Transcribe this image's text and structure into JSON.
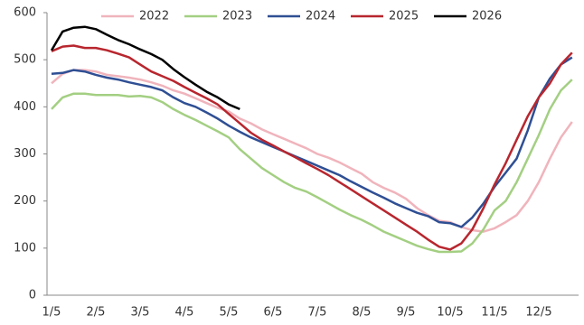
{
  "chart_data": {
    "type": "line",
    "categories": [
      "1/5",
      null,
      null,
      null,
      "2/5",
      null,
      null,
      null,
      "3/5",
      null,
      null,
      null,
      "4/5",
      null,
      null,
      null,
      "5/5",
      null,
      null,
      null,
      "6/5",
      null,
      null,
      null,
      "7/5",
      null,
      null,
      null,
      "8/5",
      null,
      null,
      null,
      "9/5",
      null,
      null,
      null,
      "10/5",
      null,
      null,
      null,
      "11/5",
      null,
      null,
      null,
      "12/5",
      null,
      null,
      null
    ],
    "series": [
      {
        "name": "2022",
        "color": "#f0b4bc",
        "values": [
          450,
          470,
          478,
          478,
          475,
          468,
          465,
          462,
          458,
          452,
          445,
          435,
          428,
          418,
          408,
          398,
          390,
          375,
          365,
          352,
          342,
          332,
          322,
          312,
          300,
          292,
          282,
          270,
          258,
          240,
          228,
          218,
          205,
          185,
          170,
          158,
          155,
          145,
          138,
          135,
          142,
          155,
          170,
          200,
          240,
          290,
          335,
          368
        ]
      },
      {
        "name": "2023",
        "color": "#a3cf82",
        "values": [
          395,
          420,
          428,
          428,
          425,
          425,
          425,
          422,
          423,
          420,
          410,
          395,
          383,
          372,
          360,
          348,
          335,
          310,
          290,
          270,
          255,
          240,
          228,
          220,
          208,
          195,
          182,
          170,
          160,
          148,
          135,
          125,
          115,
          105,
          98,
          92,
          92,
          93,
          110,
          140,
          180,
          200,
          240,
          290,
          340,
          395,
          435,
          458
        ]
      },
      {
        "name": "2024",
        "color": "#2f4f94",
        "values": [
          470,
          472,
          478,
          475,
          468,
          462,
          458,
          452,
          447,
          442,
          435,
          420,
          408,
          400,
          388,
          375,
          360,
          347,
          335,
          325,
          315,
          305,
          295,
          285,
          275,
          265,
          255,
          242,
          230,
          218,
          207,
          195,
          185,
          175,
          168,
          155,
          153,
          145,
          165,
          195,
          230,
          260,
          290,
          350,
          420,
          460,
          490,
          505
        ]
      },
      {
        "name": "2025",
        "color": "#b8262e",
        "values": [
          518,
          528,
          530,
          525,
          525,
          520,
          513,
          505,
          490,
          475,
          465,
          455,
          442,
          430,
          418,
          405,
          385,
          365,
          345,
          330,
          318,
          305,
          293,
          280,
          268,
          255,
          240,
          225,
          210,
          195,
          180,
          165,
          150,
          135,
          118,
          103,
          97,
          110,
          140,
          185,
          235,
          280,
          330,
          380,
          420,
          450,
          490,
          515
        ]
      },
      {
        "name": "2026",
        "color": "#000000",
        "values": [
          520,
          560,
          568,
          570,
          565,
          553,
          542,
          533,
          522,
          512,
          500,
          480,
          463,
          447,
          432,
          420,
          405,
          395,
          null,
          null,
          null,
          null,
          null,
          null,
          null,
          null,
          null,
          null,
          null,
          null,
          null,
          null,
          null,
          null,
          null,
          null,
          null,
          null,
          null,
          null,
          null,
          null,
          null,
          null,
          null,
          null,
          null,
          null
        ]
      }
    ],
    "ylim": [
      0,
      600
    ],
    "yticks": [
      0,
      100,
      200,
      300,
      400,
      500,
      600
    ],
    "grid": false
  }
}
